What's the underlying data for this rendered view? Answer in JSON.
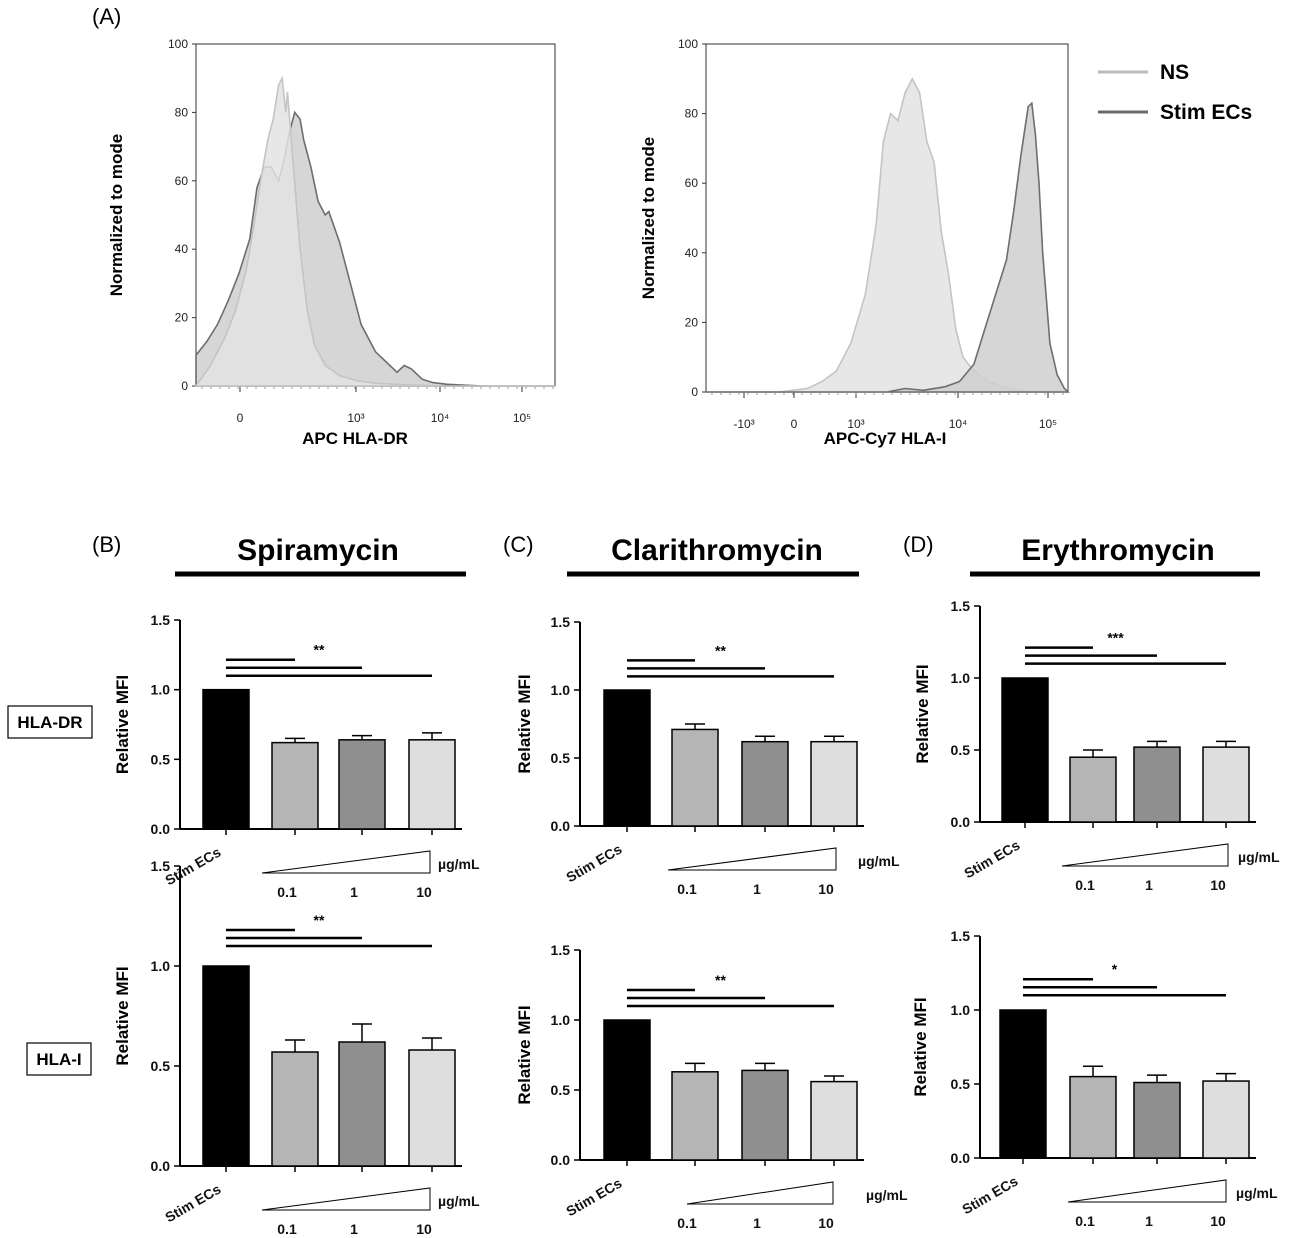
{
  "panel_labels": {
    "A": "(A)",
    "B": "(B)",
    "C": "(C)",
    "D": "(D)"
  },
  "legend": [
    {
      "label": "NS",
      "color": "#bdbdbd"
    },
    {
      "label": "Stim ECs",
      "color": "#6b6b6b"
    }
  ],
  "row_labels": [
    "HLA-DR",
    "HLA-I"
  ],
  "drug_titles": [
    "Spiramycin",
    "Clarithromycin",
    "Erythromycin"
  ],
  "dose_unit": "µg/mL",
  "colors": {
    "stim": "#000000",
    "d01": "#b5b5b5",
    "d1": "#8f8f8f",
    "d10": "#dedede",
    "ns_fill": "#e3e3e3",
    "ns_line": "#c4c4c4",
    "stim_fill": "#cfcfcf",
    "stim_line": "#6e6e6e"
  },
  "chart_data": [
    {
      "type": "area",
      "panel": "A",
      "ylabel": "Normalized to mode",
      "xlabel": "APC HLA-DR",
      "ylim": [
        0,
        100
      ],
      "yticks": [
        "0",
        "20",
        "40",
        "60",
        "80",
        "100"
      ],
      "xticks": [
        "0",
        "10³",
        "10⁴",
        "10⁵"
      ],
      "series": [
        {
          "name": "NS",
          "x": [
            0.0,
            0.04,
            0.08,
            0.11,
            0.14,
            0.16,
            0.18,
            0.2,
            0.215,
            0.23,
            0.24,
            0.25,
            0.255,
            0.27,
            0.29,
            0.31,
            0.33,
            0.36,
            0.4,
            0.45,
            0.5,
            0.6,
            0.7,
            0.8,
            0.9,
            1.0
          ],
          "y": [
            0,
            6,
            14,
            22,
            34,
            46,
            60,
            72,
            78,
            88,
            90,
            80,
            86,
            66,
            40,
            22,
            12,
            6,
            3,
            1.5,
            0.8,
            0.3,
            0,
            0,
            0,
            0
          ]
        },
        {
          "name": "Stim ECs",
          "x": [
            0.0,
            0.03,
            0.06,
            0.09,
            0.12,
            0.15,
            0.17,
            0.19,
            0.21,
            0.23,
            0.245,
            0.26,
            0.275,
            0.29,
            0.3,
            0.32,
            0.34,
            0.36,
            0.37,
            0.4,
            0.43,
            0.46,
            0.5,
            0.54,
            0.56,
            0.58,
            0.6,
            0.63,
            0.66,
            0.7,
            0.8,
            0.9,
            1.0
          ],
          "y": [
            9,
            13,
            18,
            25,
            33,
            43,
            58,
            64,
            64,
            60,
            66,
            74,
            80,
            78,
            72,
            64,
            54,
            50,
            51,
            42,
            30,
            18,
            10,
            6,
            4,
            6,
            5,
            2,
            1,
            0.5,
            0,
            0,
            0
          ]
        }
      ]
    },
    {
      "type": "area",
      "panel": "A",
      "ylabel": "Normalized to mode",
      "xlabel": "APC-Cy7 HLA-I",
      "ylim": [
        0,
        100
      ],
      "yticks": [
        "0",
        "20",
        "40",
        "60",
        "80",
        "100"
      ],
      "xticks": [
        "-10³",
        "0",
        "10³",
        "10⁴",
        "10⁵"
      ],
      "series": [
        {
          "name": "NS",
          "x": [
            0.0,
            0.2,
            0.28,
            0.32,
            0.36,
            0.4,
            0.44,
            0.47,
            0.49,
            0.51,
            0.53,
            0.55,
            0.57,
            0.59,
            0.61,
            0.63,
            0.65,
            0.67,
            0.69,
            0.71,
            0.74,
            0.78,
            0.82,
            0.86,
            0.9,
            1.0
          ],
          "y": [
            0,
            0,
            1,
            3,
            6,
            14,
            28,
            48,
            72,
            80,
            78,
            86,
            90,
            86,
            72,
            66,
            46,
            34,
            18,
            10,
            6,
            3,
            1.5,
            0.6,
            0,
            0
          ]
        },
        {
          "name": "Stim ECs",
          "x": [
            0.0,
            0.5,
            0.55,
            0.6,
            0.66,
            0.7,
            0.74,
            0.77,
            0.8,
            0.83,
            0.85,
            0.87,
            0.89,
            0.9,
            0.91,
            0.92,
            0.93,
            0.95,
            0.97,
            0.99,
            1.0
          ],
          "y": [
            0,
            0,
            1,
            0.5,
            1.5,
            3,
            8,
            18,
            28,
            38,
            52,
            68,
            82,
            83,
            74,
            60,
            40,
            14,
            5,
            1,
            0
          ]
        }
      ]
    },
    {
      "type": "bar",
      "panel": "B",
      "row": "HLA-DR",
      "ylabel": "Relative MFI",
      "ylim": [
        0,
        1.5
      ],
      "yticks": [
        "0.0",
        "0.5",
        "1.0",
        "1.5"
      ],
      "categories": [
        "Stim ECs",
        "0.1",
        "1",
        "10"
      ],
      "values": [
        1.0,
        0.62,
        0.64,
        0.64
      ],
      "errors": [
        0,
        0.03,
        0.03,
        0.05
      ],
      "significance": "**"
    },
    {
      "type": "bar",
      "panel": "C",
      "row": "HLA-DR",
      "ylabel": "Relative MFI",
      "ylim": [
        0,
        1.5
      ],
      "yticks": [
        "0.0",
        "0.5",
        "1.0",
        "1.5"
      ],
      "categories": [
        "Stim ECs",
        "0.1",
        "1",
        "10"
      ],
      "values": [
        1.0,
        0.71,
        0.62,
        0.62
      ],
      "errors": [
        0,
        0.04,
        0.04,
        0.04
      ],
      "significance": "**"
    },
    {
      "type": "bar",
      "panel": "D",
      "row": "HLA-DR",
      "ylabel": "Relative MFI",
      "ylim": [
        0,
        1.5
      ],
      "yticks": [
        "0.0",
        "0.5",
        "1.0",
        "1.5"
      ],
      "categories": [
        "Stim ECs",
        "0.1",
        "1",
        "10"
      ],
      "values": [
        1.0,
        0.45,
        0.52,
        0.52
      ],
      "errors": [
        0,
        0.05,
        0.04,
        0.04
      ],
      "significance": "***"
    },
    {
      "type": "bar",
      "panel": "B",
      "row": "HLA-I",
      "ylabel": "Relative MFI",
      "ylim": [
        0,
        1.5
      ],
      "yticks": [
        "0.0",
        "0.5",
        "1.0",
        "1.5"
      ],
      "categories": [
        "Stim ECs",
        "0.1",
        "1",
        "10"
      ],
      "values": [
        1.0,
        0.57,
        0.62,
        0.58
      ],
      "errors": [
        0,
        0.06,
        0.09,
        0.06
      ],
      "significance": "**"
    },
    {
      "type": "bar",
      "panel": "C",
      "row": "HLA-I",
      "ylabel": "Relative MFI",
      "ylim": [
        0,
        1.5
      ],
      "yticks": [
        "0.0",
        "0.5",
        "1.0",
        "1.5"
      ],
      "categories": [
        "Stim ECs",
        "0.1",
        "1",
        "10"
      ],
      "values": [
        1.0,
        0.63,
        0.64,
        0.56
      ],
      "errors": [
        0,
        0.06,
        0.05,
        0.04
      ],
      "significance": "**"
    },
    {
      "type": "bar",
      "panel": "D",
      "row": "HLA-I",
      "ylabel": "Relative MFI",
      "ylim": [
        0,
        1.5
      ],
      "yticks": [
        "0.0",
        "0.5",
        "1.0",
        "1.5"
      ],
      "categories": [
        "Stim ECs",
        "0.1",
        "1",
        "10"
      ],
      "values": [
        1.0,
        0.55,
        0.51,
        0.52
      ],
      "errors": [
        0,
        0.07,
        0.05,
        0.05
      ],
      "significance": "*"
    }
  ]
}
